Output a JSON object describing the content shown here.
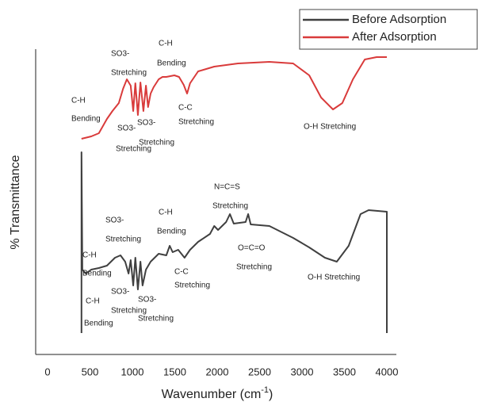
{
  "chart_data": {
    "type": "line",
    "x_label": [
      "Wavenumber (cm",
      "-1",
      ")"
    ],
    "y_label": "% Transmittance",
    "xlim": [
      0,
      4000
    ],
    "xticks": [
      0,
      500,
      1000,
      1500,
      2000,
      2500,
      3000,
      3500,
      4000
    ],
    "ylim": [
      0,
      385
    ],
    "legend": "top-right",
    "series": [
      {
        "name": "Before Adsorption",
        "color": "#404040",
        "x": [
          400,
          400,
          410,
          450,
          515,
          605,
          700,
          795,
          860,
          915,
          955,
          980,
          1010,
          1035,
          1065,
          1095,
          1120,
          1160,
          1215,
          1310,
          1400,
          1440,
          1475,
          1540,
          1615,
          1680,
          1775,
          1915,
          1965,
          2010,
          2105,
          2150,
          2195,
          2335,
          2365,
          2395,
          2615,
          2895,
          3085,
          3270,
          3410,
          3550,
          3690,
          3785,
          4000,
          4000
        ],
        "values": [
          27,
          255,
          107,
          102,
          107,
          109,
          112,
          122,
          125,
          117,
          102,
          119,
          87,
          122,
          82,
          117,
          87,
          107,
          117,
          127,
          125,
          137,
          129,
          132,
          122,
          132,
          142,
          152,
          162,
          157,
          167,
          177,
          165,
          167,
          177,
          164,
          162,
          147,
          135,
          122,
          117,
          137,
          177,
          182,
          180,
          27
        ]
      },
      {
        "name": "After Adsorption",
        "color": "#d93b3b",
        "x": [
          400,
          515,
          605,
          700,
          765,
          840,
          890,
          935,
          980,
          1010,
          1035,
          1065,
          1095,
          1130,
          1160,
          1185,
          1215,
          1250,
          1310,
          1355,
          1400,
          1495,
          1550,
          1605,
          1645,
          1680,
          1775,
          1965,
          2245,
          2615,
          2895,
          3085,
          3225,
          3365,
          3475,
          3600,
          3740,
          3880,
          4000
        ],
        "values": [
          272,
          275,
          279,
          297,
          307,
          317,
          335,
          347,
          339,
          307,
          342,
          302,
          343,
          307,
          339,
          312,
          329,
          337,
          347,
          350,
          350,
          352,
          350,
          340,
          329,
          342,
          357,
          363,
          367,
          369,
          367,
          352,
          324,
          309,
          317,
          347,
          372,
          375,
          375
        ]
      }
    ],
    "annotations": [
      "C-H",
      "Bending",
      "SO3-",
      "Stretching",
      "C-H",
      "Bending",
      "SO3-",
      "SO3-",
      "Stretching",
      "Stretching",
      "C-C",
      "Stretching",
      "O-H Stretching",
      "C-H",
      "Bending",
      "SO3-",
      "Stretching",
      "C-H",
      "Bending",
      "N=C=S",
      "Stretching",
      "O=C=O",
      "Stretching",
      "C-H",
      "Bending",
      "SO3-",
      "SO3-",
      "Stretching",
      "Stretching",
      "C-C",
      "Stretching",
      "O-H Stretching"
    ]
  }
}
